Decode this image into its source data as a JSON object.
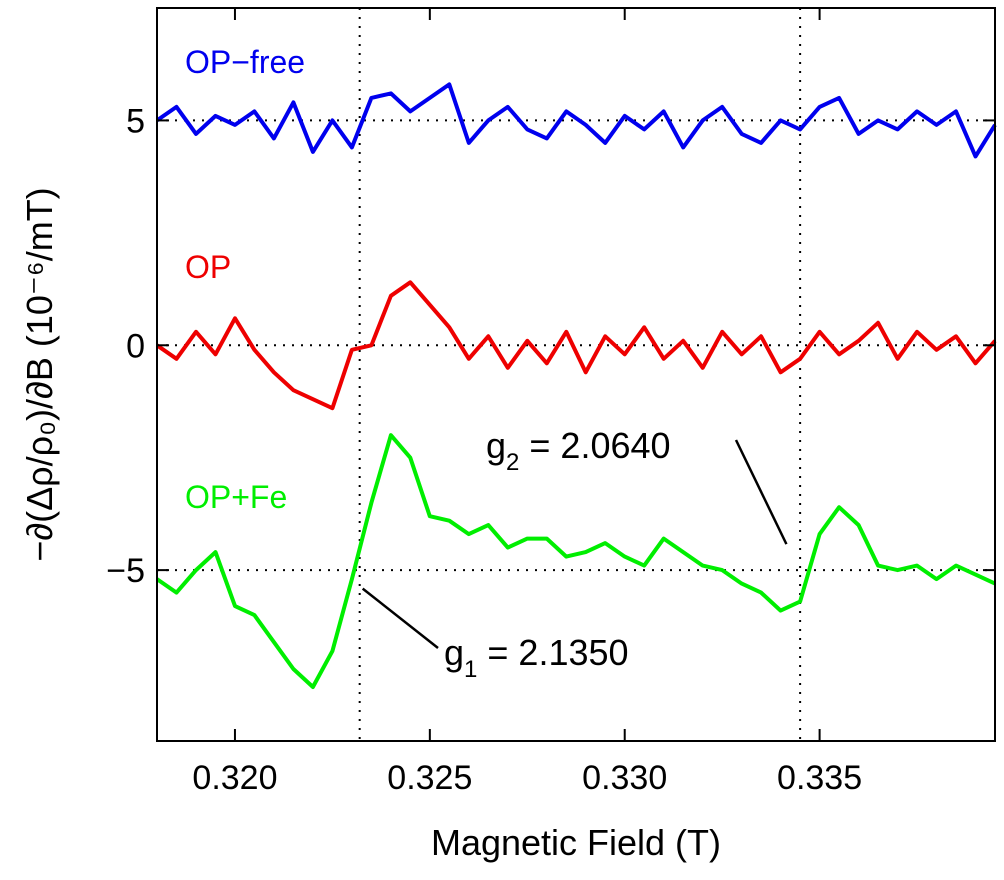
{
  "chart_data": {
    "type": "line",
    "title": "",
    "xlabel": "Magnetic Field (T)",
    "ylabel": "−∂(Δρ/ρ₀)/∂B (10⁻⁶/mT)",
    "xlim": [
      0.318,
      0.3395
    ],
    "ylim": [
      -8.8,
      7.5
    ],
    "xticks": [
      0.32,
      0.325,
      0.33,
      0.335
    ],
    "xtick_labels": [
      "0.320",
      "0.325",
      "0.330",
      "0.335"
    ],
    "yticks": [
      5,
      0,
      -5
    ],
    "ytick_labels": [
      "5",
      "0",
      "−5"
    ],
    "grid": false,
    "reference_lines": {
      "horizontal_dotted": [
        5,
        0,
        -5
      ],
      "vertical_dotted": [
        0.3232,
        0.3345
      ]
    },
    "series": [
      {
        "name": "OP−free",
        "color": "#0000ee",
        "x": [
          0.318,
          0.3185,
          0.319,
          0.3195,
          0.32,
          0.3205,
          0.321,
          0.3215,
          0.322,
          0.3225,
          0.323,
          0.3235,
          0.324,
          0.3245,
          0.325,
          0.3255,
          0.326,
          0.3265,
          0.327,
          0.3275,
          0.328,
          0.3285,
          0.329,
          0.3295,
          0.33,
          0.3305,
          0.331,
          0.3315,
          0.332,
          0.3325,
          0.333,
          0.3335,
          0.334,
          0.3345,
          0.335,
          0.3355,
          0.336,
          0.3365,
          0.337,
          0.3375,
          0.338,
          0.3385,
          0.339,
          0.3395
        ],
        "y": [
          5.0,
          5.3,
          4.7,
          5.1,
          4.9,
          5.2,
          4.6,
          5.4,
          4.3,
          5.0,
          4.4,
          5.5,
          5.6,
          5.2,
          5.5,
          5.8,
          4.5,
          5.0,
          5.3,
          4.8,
          4.6,
          5.2,
          4.9,
          4.5,
          5.1,
          4.8,
          5.2,
          4.4,
          5.0,
          5.3,
          4.7,
          4.5,
          5.0,
          4.8,
          5.3,
          5.5,
          4.7,
          5.0,
          4.8,
          5.2,
          4.9,
          5.2,
          4.2,
          4.9
        ]
      },
      {
        "name": "OP",
        "color": "#ee0000",
        "x": [
          0.318,
          0.3185,
          0.319,
          0.3195,
          0.32,
          0.3205,
          0.321,
          0.3215,
          0.322,
          0.3225,
          0.323,
          0.3235,
          0.324,
          0.3245,
          0.325,
          0.3255,
          0.326,
          0.3265,
          0.327,
          0.3275,
          0.328,
          0.3285,
          0.329,
          0.3295,
          0.33,
          0.3305,
          0.331,
          0.3315,
          0.332,
          0.3325,
          0.333,
          0.3335,
          0.334,
          0.3345,
          0.335,
          0.3355,
          0.336,
          0.3365,
          0.337,
          0.3375,
          0.338,
          0.3385,
          0.339,
          0.3395
        ],
        "y": [
          0.0,
          -0.3,
          0.3,
          -0.2,
          0.6,
          -0.1,
          -0.6,
          -1.0,
          -1.2,
          -1.4,
          -0.1,
          0.0,
          1.1,
          1.4,
          0.9,
          0.4,
          -0.3,
          0.2,
          -0.5,
          0.1,
          -0.4,
          0.3,
          -0.6,
          0.2,
          -0.2,
          0.4,
          -0.3,
          0.1,
          -0.5,
          0.3,
          -0.2,
          0.2,
          -0.6,
          -0.3,
          0.3,
          -0.2,
          0.1,
          0.5,
          -0.3,
          0.3,
          -0.1,
          0.2,
          -0.4,
          0.1
        ]
      },
      {
        "name": "OP+Fe",
        "color": "#00ee00",
        "x": [
          0.318,
          0.3185,
          0.319,
          0.3195,
          0.32,
          0.3205,
          0.321,
          0.3215,
          0.322,
          0.3225,
          0.323,
          0.3235,
          0.324,
          0.3245,
          0.325,
          0.3255,
          0.326,
          0.3265,
          0.327,
          0.3275,
          0.328,
          0.3285,
          0.329,
          0.3295,
          0.33,
          0.3305,
          0.331,
          0.3315,
          0.332,
          0.3325,
          0.333,
          0.3335,
          0.334,
          0.3345,
          0.335,
          0.3355,
          0.336,
          0.3365,
          0.337,
          0.3375,
          0.338,
          0.3385,
          0.339,
          0.3395
        ],
        "y": [
          -5.2,
          -5.5,
          -5.0,
          -4.6,
          -5.8,
          -6.0,
          -6.6,
          -7.2,
          -7.6,
          -6.8,
          -5.2,
          -3.5,
          -2.0,
          -2.5,
          -3.8,
          -3.9,
          -4.2,
          -4.0,
          -4.5,
          -4.3,
          -4.3,
          -4.7,
          -4.6,
          -4.4,
          -4.7,
          -4.9,
          -4.3,
          -4.6,
          -4.9,
          -5.0,
          -5.3,
          -5.5,
          -5.9,
          -5.7,
          -4.2,
          -3.6,
          -4.0,
          -4.9,
          -5.0,
          -4.9,
          -5.2,
          -4.9,
          -5.1,
          -5.3
        ]
      }
    ],
    "series_labels": [
      "OP−free",
      "OP",
      "OP+Fe"
    ],
    "annotations": [
      {
        "base": "g",
        "sub": "1",
        "rest": " = 2.1350",
        "points_to_x": 0.3232,
        "points_to_y": -5.3
      },
      {
        "base": "g",
        "sub": "2",
        "rest": " = 2.0640",
        "points_to_x": 0.3342,
        "points_to_y": -4.6
      }
    ]
  }
}
